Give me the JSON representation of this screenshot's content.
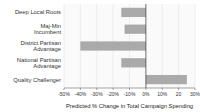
{
  "chart_data": {
    "type": "bar",
    "orientation": "horizontal",
    "categories": [
      "Quality Challenger",
      "National Partisan\nAdvantage",
      "District Partisan\nAdvantage",
      "Maj-Min\nIncumbent",
      "Deep Local Roots"
    ],
    "values": [
      25,
      -15,
      -40,
      -13,
      -15
    ],
    "color": "#aaaaaa",
    "xlabel": "Predicted % Change in Total Campaign Spending",
    "xlim": [
      -50,
      30
    ],
    "xticks": [
      {
        "value": -50,
        "label": "-50%"
      },
      {
        "value": -40,
        "label": "-40%"
      },
      {
        "value": -30,
        "label": "-30%"
      },
      {
        "value": -20,
        "label": "-20%"
      },
      {
        "value": -10,
        "label": "-10%"
      },
      {
        "value": 0,
        "label": "0%"
      },
      {
        "value": 10,
        "label": "10%"
      },
      20,
      {
        "value": 30,
        "label": "30%"
      }
    ],
    "grid": true
  }
}
